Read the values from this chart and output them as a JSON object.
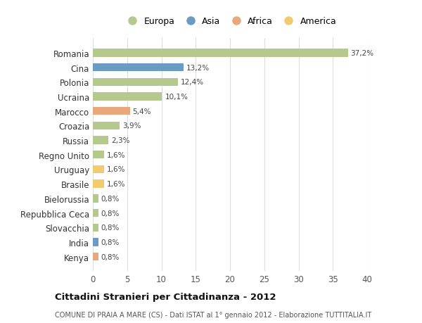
{
  "countries": [
    "Romania",
    "Cina",
    "Polonia",
    "Ucraina",
    "Marocco",
    "Croazia",
    "Russia",
    "Regno Unito",
    "Uruguay",
    "Brasile",
    "Bielorussia",
    "Repubblica Ceca",
    "Slovacchia",
    "India",
    "Kenya"
  ],
  "values": [
    37.2,
    13.2,
    12.4,
    10.1,
    5.4,
    3.9,
    2.3,
    1.6,
    1.6,
    1.6,
    0.8,
    0.8,
    0.8,
    0.8,
    0.8
  ],
  "labels": [
    "37,2%",
    "13,2%",
    "12,4%",
    "10,1%",
    "5,4%",
    "3,9%",
    "2,3%",
    "1,6%",
    "1,6%",
    "1,6%",
    "0,8%",
    "0,8%",
    "0,8%",
    "0,8%",
    "0,8%"
  ],
  "continents": [
    "Europa",
    "Asia",
    "Europa",
    "Europa",
    "Africa",
    "Europa",
    "Europa",
    "Europa",
    "America",
    "America",
    "Europa",
    "Europa",
    "Europa",
    "Asia",
    "Africa"
  ],
  "continent_colors": {
    "Europa": "#b5c98e",
    "Asia": "#6b9bc3",
    "Africa": "#e8a87c",
    "America": "#f0cc6e"
  },
  "legend_order": [
    "Europa",
    "Asia",
    "Africa",
    "America"
  ],
  "xlim": [
    0,
    40
  ],
  "xticks": [
    0,
    5,
    10,
    15,
    20,
    25,
    30,
    35,
    40
  ],
  "title": "Cittadini Stranieri per Cittadinanza - 2012",
  "subtitle": "COMUNE DI PRAIA A MARE (CS) - Dati ISTAT al 1° gennaio 2012 - Elaborazione TUTTITALIA.IT",
  "bg_color": "#ffffff",
  "grid_color": "#dddddd",
  "bar_height": 0.55
}
